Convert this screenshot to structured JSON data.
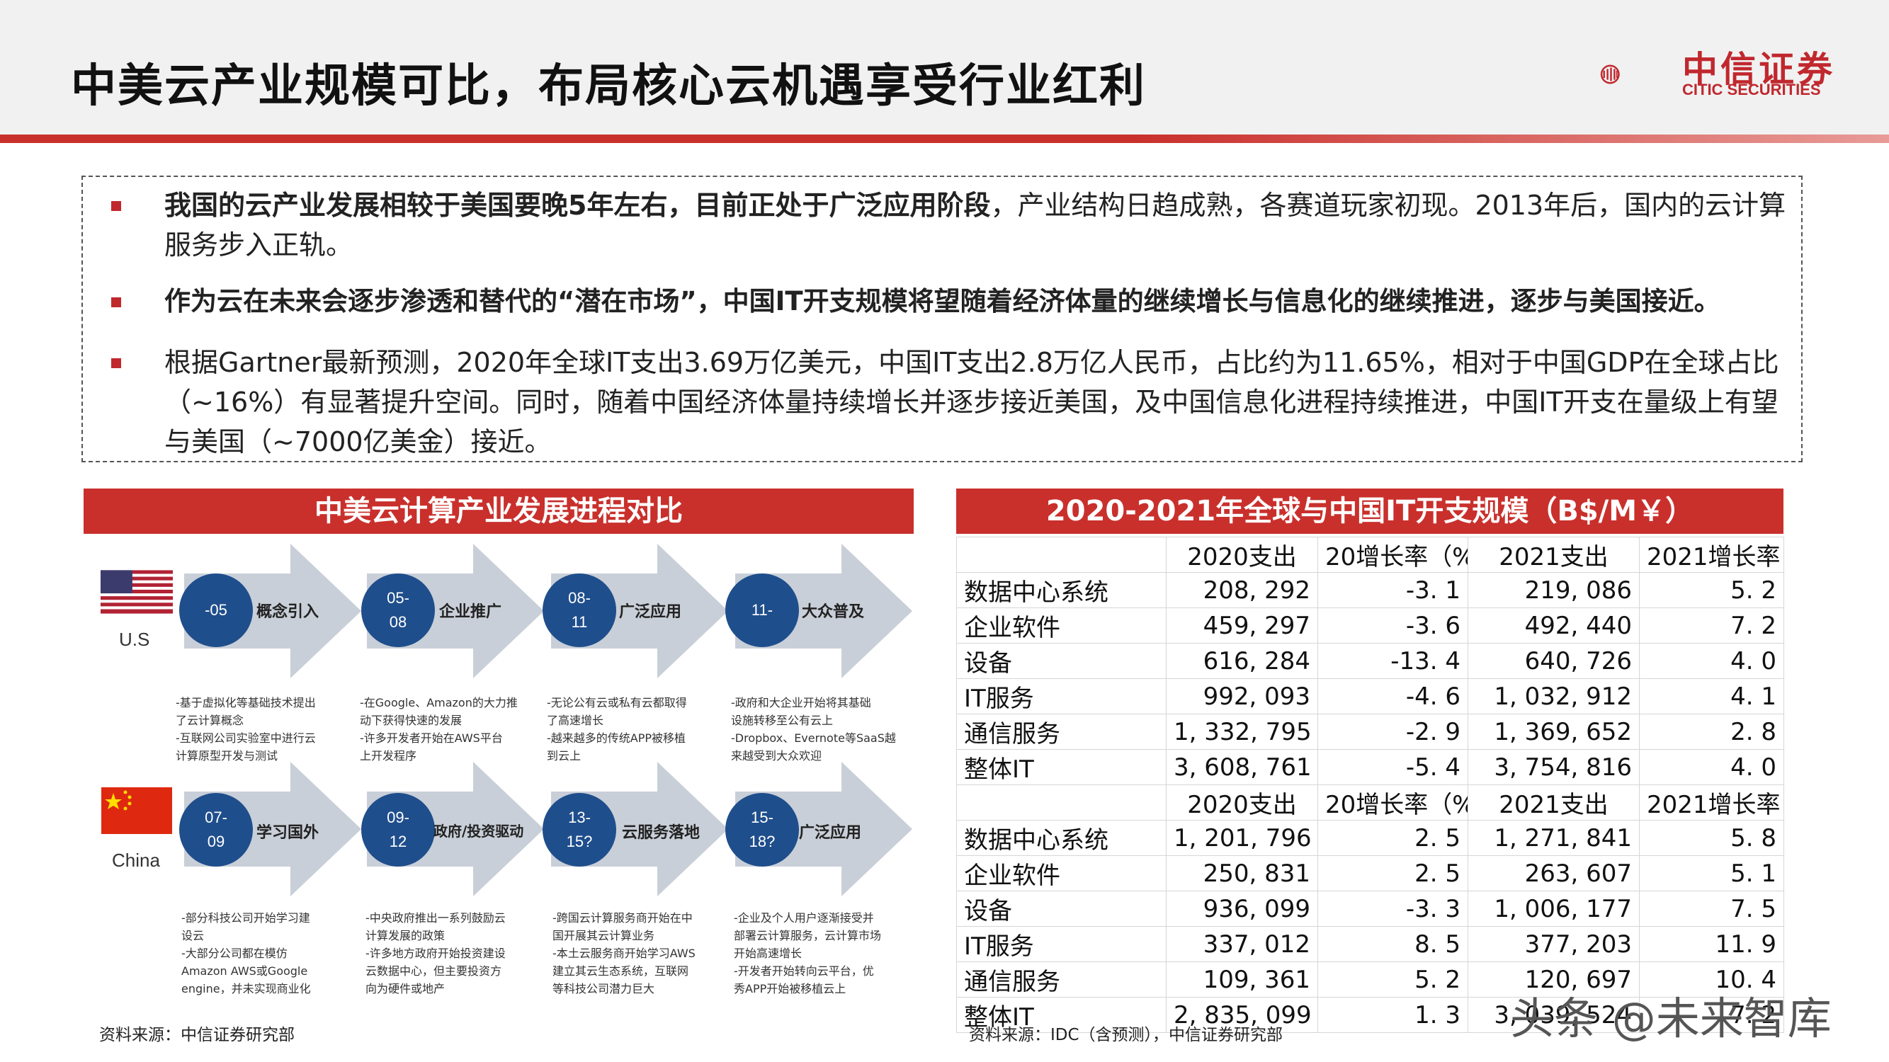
{
  "header": {
    "title": "中美云产业规模可比，布局核心云机遇享受行业红利",
    "logo_cn": "中信证券",
    "logo_en": "CITIC SECURITIES"
  },
  "bullets": [
    {
      "bold": "我国的云产业发展相较于美国要晚5年左右，目前正处于广泛应用阶段",
      "text": "，产业结构日趋成熟，各赛道玩家初现。2013年后，国内的云计算服务步入正轨。"
    },
    {
      "bold": "作为云在未来会逐步渗透和替代的“潜在市场”，中国IT开支规模将望随着经济体量的继续增长与信息化的继续推进，逐步与美国接近。",
      "text": ""
    },
    {
      "bold": "",
      "text": "根据Gartner最新预测，2020年全球IT支出3.69万亿美元，中国IT支出2.8万亿人民币，占比约为11.65%，相对于中国GDP在全球占比（~16%）有显著提升空间。同时，随着中国经济体量持续增长并逐步接近美国，及中国信息化进程持续推进，中国IT开支在量级上有望与美国（~7000亿美金）接近。"
    }
  ],
  "left_panel": {
    "title": "中美云计算产业发展进程对比",
    "us": {
      "label": "U.S",
      "stages": [
        {
          "period": "-05",
          "name": "概念引入",
          "desc": [
            "-基于虚拟化等基础技术提出",
            "了云计算概念",
            "-互联网公司实验室中进行云",
            "计算原型开发与测试"
          ]
        },
        {
          "period": "05-\n08",
          "name": "企业推广",
          "desc": [
            "-在Google、Amazon的大力推",
            "动下获得快速的发展",
            "-许多开发者开始在AWS平台",
            "上开发程序"
          ]
        },
        {
          "period": "08-\n11",
          "name": "广泛应用",
          "desc": [
            "-无论公有云或私有云都取得",
            "了高速增长",
            "-越来越多的传统APP被移植",
            "到云上"
          ]
        },
        {
          "period": "11-",
          "name": "大众普及",
          "desc": [
            "-政府和大企业开始将其基础",
            "设施转移至公有云上",
            "-Dropbox、Evernote等SaaS越",
            "来越受到大众欢迎"
          ]
        }
      ]
    },
    "china": {
      "label": "China",
      "stages": [
        {
          "period": "07-\n09",
          "name": "学习国外",
          "desc": [
            "-部分科技公司开始学习建",
            "设云",
            "-大部分公司都在模仿",
            "Amazon AWS或Google",
            "engine，并未实现商业化"
          ]
        },
        {
          "period": "09-\n12",
          "name": "政府/投资驱动",
          "desc": [
            "-中央政府推出一系列鼓励云",
            "计算发展的政策",
            "-许多地方政府开始投资建设",
            "云数据中心，但主要投资方",
            "向为硬件或地产"
          ]
        },
        {
          "period": "13-\n15?",
          "name": "云服务落地",
          "desc": [
            "-跨国云计算服务商开始在中",
            "国开展其云计算业务",
            "-本土云服务商开始学习AWS",
            "建立其云生态系统，互联网",
            "等科技公司潜力巨大"
          ]
        },
        {
          "period": "15-\n18?",
          "name": "广泛应用",
          "desc": [
            "-企业及个人用户逐渐接受并",
            "部署云计算服务，云计算市场",
            "开始高速增长",
            "-开发者开始转向云平台，优",
            "秀APP开始被移植云上"
          ]
        }
      ]
    },
    "source": "资料来源：中信证券研究部"
  },
  "right_panel": {
    "title": "2020-2021年全球与中国IT开支规模（B$/M￥）",
    "header": [
      "",
      "2020支出",
      "20增长率（%",
      "2021支出",
      "2021增长率"
    ],
    "global_rows": [
      [
        "数据中心系统",
        "208, 292",
        "-3. 1",
        "219, 086",
        "5. 2"
      ],
      [
        "企业软件",
        "459, 297",
        "-3. 6",
        "492, 440",
        "7. 2"
      ],
      [
        "设备",
        "616, 284",
        "-13. 4",
        "640, 726",
        "4. 0"
      ],
      [
        "IT服务",
        "992, 093",
        "-4. 6",
        "1, 032, 912",
        "4. 1"
      ],
      [
        "通信服务",
        "1, 332, 795",
        "-2. 9",
        "1, 369, 652",
        "2. 8"
      ],
      [
        "整体IT",
        "3, 608, 761",
        "-5. 4",
        "3, 754, 816",
        "4. 0"
      ]
    ],
    "china_rows": [
      [
        "数据中心系统",
        "1, 201, 796",
        "2. 5",
        "1, 271, 841",
        "5. 8"
      ],
      [
        "企业软件",
        "250, 831",
        "2. 5",
        "263, 607",
        "5. 1"
      ],
      [
        "设备",
        "936, 099",
        "-3. 3",
        "1, 006, 177",
        "7. 5"
      ],
      [
        "IT服务",
        "337, 012",
        "8. 5",
        "377, 203",
        "11. 9"
      ],
      [
        "通信服务",
        "109, 361",
        "5. 2",
        "120, 697",
        "10. 4"
      ],
      [
        "整体IT",
        "2, 835, 099",
        "1. 3",
        "3, 039, 524",
        "7. 2"
      ]
    ],
    "source": "资料来源：IDC（含预测），中信证券研究部"
  },
  "watermark": "头条 @未来智库",
  "colors": {
    "accent": "#c9302c",
    "stage_circle": "#1f4e8c",
    "arrow": "#c9cfd8"
  }
}
